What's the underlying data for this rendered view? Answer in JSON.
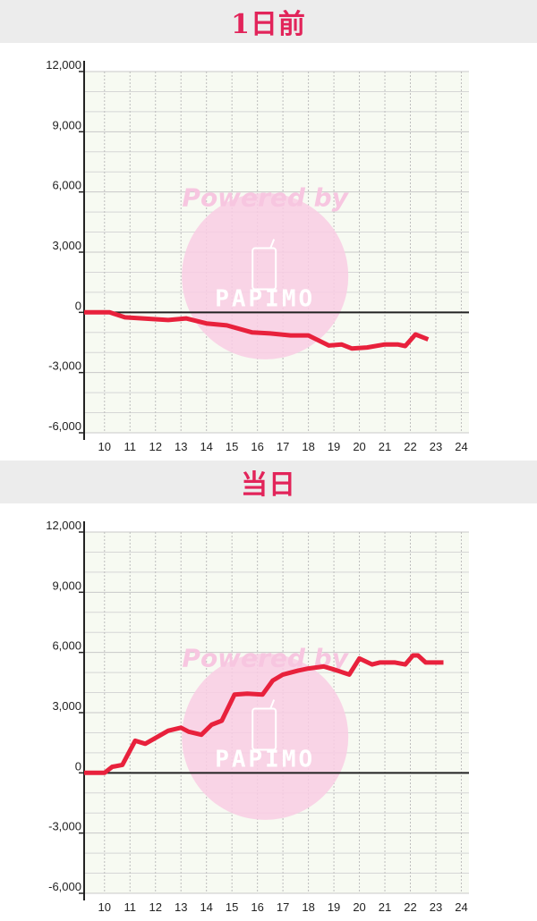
{
  "sections": [
    {
      "title": "1日前"
    },
    {
      "title": "当日"
    }
  ],
  "watermark": {
    "text": "Powered by",
    "brand": "PAPIMO"
  },
  "colors": {
    "line": "#e8213c",
    "title": "#e2245a",
    "watermark": "#f9cde4",
    "plot_bg": "#f7faf2"
  },
  "chart_data": [
    {
      "type": "line",
      "title": "1日前",
      "xlim": [
        9.2,
        24.3
      ],
      "ylim": [
        -6000,
        12000
      ],
      "x_ticks": [
        "10",
        "11",
        "12",
        "13",
        "14",
        "15",
        "16",
        "17",
        "18",
        "19",
        "20",
        "21",
        "22",
        "23",
        "24"
      ],
      "y_ticks": [
        "12,000",
        "9,000",
        "6,000",
        "3,000",
        "0",
        "-3,000",
        "-6,000"
      ],
      "grid": true,
      "series": [
        {
          "x": [
            9.2,
            10.2,
            10.8,
            11.5,
            12.5,
            13.2,
            14.0,
            14.8,
            15.8,
            16.5,
            17.3,
            18.0,
            18.8,
            19.3,
            19.7,
            20.3,
            21.0,
            21.5,
            21.8,
            22.2,
            22.7
          ],
          "y": [
            0,
            0,
            -250,
            -300,
            -380,
            -300,
            -550,
            -650,
            -1000,
            -1050,
            -1150,
            -1150,
            -1650,
            -1600,
            -1800,
            -1750,
            -1600,
            -1600,
            -1680,
            -1100,
            -1350
          ]
        }
      ]
    },
    {
      "type": "line",
      "title": "当日",
      "xlim": [
        9.2,
        24.3
      ],
      "ylim": [
        -6000,
        12000
      ],
      "x_ticks": [
        "10",
        "11",
        "12",
        "13",
        "14",
        "15",
        "16",
        "17",
        "18",
        "19",
        "20",
        "21",
        "22",
        "23",
        "24"
      ],
      "y_ticks": [
        "12,000",
        "9,000",
        "6,000",
        "3,000",
        "0",
        "-3,000",
        "-6,000"
      ],
      "grid": true,
      "series": [
        {
          "x": [
            9.2,
            10.0,
            10.3,
            10.7,
            11.2,
            11.6,
            12.5,
            13.0,
            13.3,
            13.8,
            14.2,
            14.6,
            15.1,
            15.6,
            16.2,
            16.6,
            17.0,
            17.6,
            18.0,
            18.6,
            19.0,
            19.6,
            20.0,
            20.5,
            20.8,
            21.4,
            21.8,
            22.1,
            22.3,
            22.6,
            22.9,
            23.3
          ],
          "y": [
            0,
            0,
            300,
            400,
            1600,
            1450,
            2100,
            2250,
            2050,
            1900,
            2400,
            2600,
            3900,
            3950,
            3900,
            4600,
            4900,
            5100,
            5200,
            5300,
            5150,
            4900,
            5700,
            5400,
            5500,
            5500,
            5400,
            5850,
            5850,
            5500,
            5500,
            5500
          ]
        }
      ]
    }
  ]
}
